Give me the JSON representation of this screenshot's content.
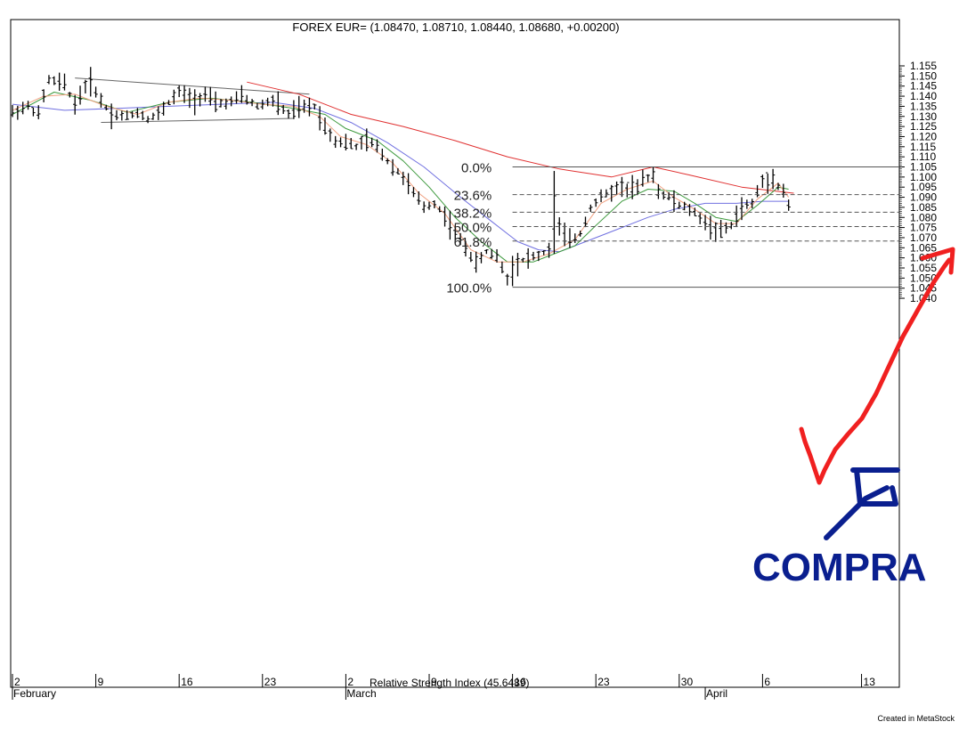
{
  "chart_data": {
    "type": "candlestick-ohlc",
    "title": "FOREX EUR= (1.08470, 1.08710, 1.08440, 1.08680, +0.00200)",
    "indicator_label": "Relative Strength Index (45.6489)",
    "ylim": [
      1.036,
      1.165
    ],
    "y_ticks": [
      1.04,
      1.045,
      1.05,
      1.055,
      1.06,
      1.065,
      1.07,
      1.075,
      1.08,
      1.085,
      1.09,
      1.095,
      1.1,
      1.105,
      1.11,
      1.115,
      1.12,
      1.125,
      1.13,
      1.135,
      1.14,
      1.145,
      1.15,
      1.155
    ],
    "y_tick_labels": [
      "1.040",
      "1.045",
      "1.050",
      "1.055",
      "1.060",
      "1.065",
      "1.070",
      "1.075",
      "1.080",
      "1.085",
      "1.090",
      "1.095",
      "1.100",
      "1.105",
      "1.110",
      "1.115",
      "1.120",
      "1.125",
      "1.130",
      "1.135",
      "1.140",
      "1.145",
      "1.150",
      "1.155"
    ],
    "x_ticks": [
      {
        "i": 0,
        "label": "2"
      },
      {
        "i": 16,
        "label": "9"
      },
      {
        "i": 32,
        "label": "16"
      },
      {
        "i": 48,
        "label": "23"
      },
      {
        "i": 64,
        "label": "2"
      },
      {
        "i": 80,
        "label": "9"
      },
      {
        "i": 96,
        "label": "16"
      },
      {
        "i": 112,
        "label": "23"
      },
      {
        "i": 128,
        "label": "30"
      },
      {
        "i": 144,
        "label": "6"
      },
      {
        "i": 163,
        "label": "13"
      }
    ],
    "month_labels": [
      {
        "i": 0,
        "label": "February"
      },
      {
        "i": 64,
        "label": "March"
      },
      {
        "i": 133,
        "label": "April"
      }
    ],
    "x_count": 166,
    "price_anchors": [
      [
        0,
        1.132
      ],
      [
        3,
        1.135
      ],
      [
        5,
        1.131
      ],
      [
        6,
        1.14
      ],
      [
        7,
        1.148
      ],
      [
        10,
        1.146
      ],
      [
        12,
        1.136
      ],
      [
        14,
        1.145
      ],
      [
        15,
        1.147
      ],
      [
        17,
        1.138
      ],
      [
        19,
        1.131
      ],
      [
        22,
        1.13
      ],
      [
        24,
        1.132
      ],
      [
        26,
        1.129
      ],
      [
        28,
        1.131
      ],
      [
        30,
        1.137
      ],
      [
        32,
        1.142
      ],
      [
        35,
        1.138
      ],
      [
        37,
        1.141
      ],
      [
        39,
        1.136
      ],
      [
        42,
        1.137
      ],
      [
        44,
        1.14
      ],
      [
        47,
        1.135
      ],
      [
        50,
        1.138
      ],
      [
        53,
        1.131
      ],
      [
        55,
        1.134
      ],
      [
        58,
        1.135
      ],
      [
        60,
        1.125
      ],
      [
        62,
        1.118
      ],
      [
        64,
        1.117
      ],
      [
        66,
        1.115
      ],
      [
        68,
        1.118
      ],
      [
        70,
        1.115
      ],
      [
        72,
        1.108
      ],
      [
        75,
        1.1
      ],
      [
        77,
        1.092
      ],
      [
        79,
        1.085
      ],
      [
        81,
        1.087
      ],
      [
        83,
        1.081
      ],
      [
        85,
        1.072
      ],
      [
        87,
        1.065
      ],
      [
        89,
        1.057
      ],
      [
        91,
        1.063
      ],
      [
        93,
        1.061
      ],
      [
        95,
        1.05
      ],
      [
        97,
        1.058
      ],
      [
        99,
        1.06
      ],
      [
        101,
        1.061
      ],
      [
        103,
        1.064
      ],
      [
        105,
        1.075
      ],
      [
        107,
        1.068
      ],
      [
        109,
        1.072
      ],
      [
        111,
        1.085
      ],
      [
        113,
        1.09
      ],
      [
        115,
        1.093
      ],
      [
        117,
        1.096
      ],
      [
        119,
        1.091
      ],
      [
        121,
        1.098
      ],
      [
        122,
        1.1
      ],
      [
        124,
        1.093
      ],
      [
        126,
        1.09
      ],
      [
        128,
        1.086
      ],
      [
        130,
        1.084
      ],
      [
        132,
        1.08
      ],
      [
        134,
        1.075
      ],
      [
        136,
        1.073
      ],
      [
        138,
        1.076
      ],
      [
        140,
        1.085
      ],
      [
        142,
        1.087
      ],
      [
        144,
        1.098
      ],
      [
        146,
        1.099
      ],
      [
        148,
        1.093
      ],
      [
        149,
        1.086
      ]
    ],
    "spike_bars": [
      {
        "i": 104,
        "high": 1.103,
        "low": 1.062
      },
      {
        "i": 123,
        "high": 1.105,
        "low": 1.097
      },
      {
        "i": 119,
        "high": 1.101,
        "low": 1.089
      },
      {
        "i": 96,
        "high": 1.061,
        "low": 1.046
      },
      {
        "i": 146,
        "high": 1.104,
        "low": 1.094
      }
    ],
    "series": [
      {
        "type": "moving-average",
        "color": "#e03030",
        "points": [
          [
            45,
            1.147
          ],
          [
            55,
            1.141
          ],
          [
            65,
            1.131
          ],
          [
            75,
            1.125
          ],
          [
            85,
            1.118
          ],
          [
            95,
            1.11
          ],
          [
            105,
            1.104
          ],
          [
            115,
            1.1
          ],
          [
            123,
            1.105
          ],
          [
            130,
            1.101
          ],
          [
            140,
            1.095
          ],
          [
            150,
            1.092
          ]
        ]
      },
      {
        "type": "moving-average",
        "color": "#7070e0",
        "points": [
          [
            0,
            1.136
          ],
          [
            10,
            1.133
          ],
          [
            20,
            1.134
          ],
          [
            30,
            1.135
          ],
          [
            40,
            1.136
          ],
          [
            50,
            1.137
          ],
          [
            58,
            1.134
          ],
          [
            65,
            1.127
          ],
          [
            72,
            1.117
          ],
          [
            79,
            1.105
          ],
          [
            86,
            1.09
          ],
          [
            92,
            1.078
          ],
          [
            97,
            1.068
          ],
          [
            101,
            1.064
          ],
          [
            105,
            1.063
          ],
          [
            110,
            1.068
          ],
          [
            116,
            1.074
          ],
          [
            122,
            1.08
          ],
          [
            127,
            1.084
          ],
          [
            133,
            1.087
          ],
          [
            139,
            1.087
          ],
          [
            144,
            1.088
          ],
          [
            149,
            1.088
          ]
        ]
      },
      {
        "type": "moving-average",
        "color": "#3e9a3e",
        "points": [
          [
            0,
            1.131
          ],
          [
            8,
            1.142
          ],
          [
            15,
            1.138
          ],
          [
            22,
            1.132
          ],
          [
            30,
            1.137
          ],
          [
            38,
            1.139
          ],
          [
            46,
            1.137
          ],
          [
            54,
            1.134
          ],
          [
            60,
            1.131
          ],
          [
            64,
            1.124
          ],
          [
            70,
            1.118
          ],
          [
            75,
            1.108
          ],
          [
            80,
            1.095
          ],
          [
            85,
            1.08
          ],
          [
            90,
            1.068
          ],
          [
            95,
            1.058
          ],
          [
            100,
            1.058
          ],
          [
            104,
            1.062
          ],
          [
            108,
            1.066
          ],
          [
            112,
            1.076
          ],
          [
            117,
            1.088
          ],
          [
            122,
            1.094
          ],
          [
            127,
            1.093
          ],
          [
            131,
            1.087
          ],
          [
            135,
            1.08
          ],
          [
            139,
            1.078
          ],
          [
            143,
            1.086
          ],
          [
            147,
            1.095
          ],
          [
            149,
            1.094
          ]
        ]
      },
      {
        "type": "moving-average",
        "color": "#f0a080",
        "points": [
          [
            0,
            1.133
          ],
          [
            6,
            1.14
          ],
          [
            12,
            1.141
          ],
          [
            18,
            1.135
          ],
          [
            24,
            1.131
          ],
          [
            30,
            1.137
          ],
          [
            36,
            1.139
          ],
          [
            42,
            1.138
          ],
          [
            48,
            1.136
          ],
          [
            54,
            1.135
          ],
          [
            59,
            1.13
          ],
          [
            63,
            1.12
          ],
          [
            68,
            1.116
          ],
          [
            73,
            1.107
          ],
          [
            78,
            1.092
          ],
          [
            83,
            1.082
          ],
          [
            88,
            1.064
          ],
          [
            93,
            1.058
          ],
          [
            98,
            1.058
          ],
          [
            103,
            1.062
          ],
          [
            108,
            1.069
          ],
          [
            113,
            1.087
          ],
          [
            118,
            1.094
          ],
          [
            123,
            1.098
          ],
          [
            127,
            1.09
          ],
          [
            131,
            1.084
          ],
          [
            135,
            1.077
          ],
          [
            139,
            1.077
          ],
          [
            143,
            1.089
          ],
          [
            147,
            1.097
          ],
          [
            149,
            1.09
          ]
        ]
      }
    ],
    "trendlines": [
      {
        "points": [
          [
            12,
            1.149
          ],
          [
            57,
            1.141
          ]
        ],
        "color": "#666666"
      },
      {
        "points": [
          [
            17,
            1.127
          ],
          [
            54,
            1.129
          ]
        ],
        "color": "#666666"
      }
    ],
    "fibonacci": {
      "x_start": 96,
      "x_label": 92,
      "levels": [
        {
          "label": "0.0%",
          "value": 1.105,
          "style": "solid"
        },
        {
          "label": "23.6%",
          "value": 1.0913,
          "style": "dashed"
        },
        {
          "label": "38.2%",
          "value": 1.0826,
          "style": "dashed"
        },
        {
          "label": "50.0%",
          "value": 1.0755,
          "style": "dashed"
        },
        {
          "label": "61.8%",
          "value": 1.0683,
          "style": "dashed"
        },
        {
          "label": "100.0%",
          "value": 1.0455,
          "style": "solid"
        }
      ]
    },
    "annotations": {
      "handwritten_text": "COMPRA",
      "red_arrow_color": "#f02020",
      "blue_mark_color": "#0a1f8f"
    }
  },
  "footer": {
    "credit": "Created in MetaStock"
  }
}
